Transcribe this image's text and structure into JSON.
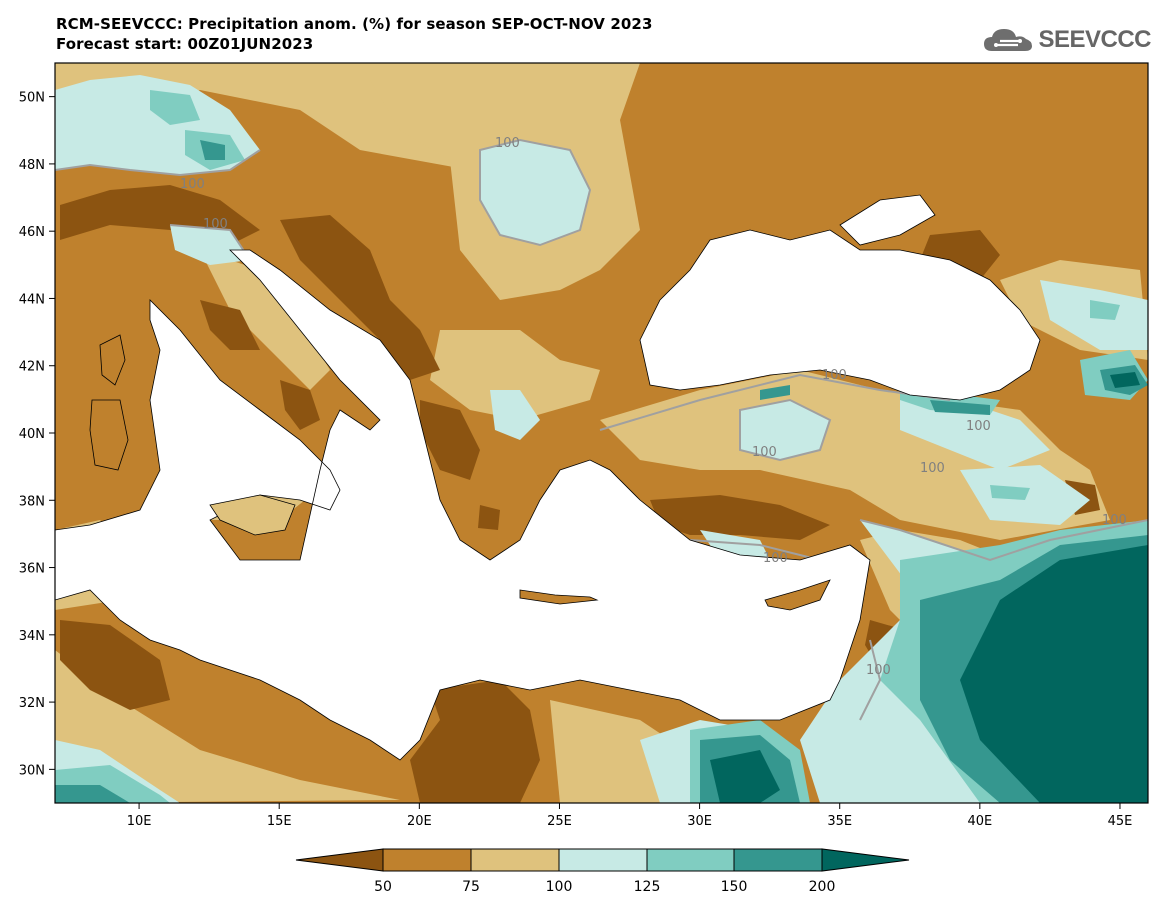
{
  "header": {
    "title_line1": "RCM-SEEVCCC: Precipitation anom. (%) for season SEP-OCT-NOV 2023",
    "title_line2": "Forecast start: 00Z01JUN2023"
  },
  "logo": {
    "text": "SEEVCCC",
    "icon": "cloud-icon"
  },
  "map": {
    "projection": "lat-lon",
    "lon_range": [
      7,
      46
    ],
    "lat_range": [
      29,
      51
    ],
    "lon_ticks": [
      "10E",
      "15E",
      "20E",
      "25E",
      "30E",
      "35E",
      "40E",
      "45E"
    ],
    "lat_ticks": [
      "30N",
      "32N",
      "34N",
      "36N",
      "38N",
      "40N",
      "42N",
      "44N",
      "46N",
      "48N",
      "50N"
    ],
    "contour_labels": [
      "100",
      "100",
      "100",
      "100",
      "100",
      "100",
      "100",
      "100",
      "100",
      "100",
      "100"
    ],
    "variable": "Precipitation anomaly (%)"
  },
  "colorbar": {
    "levels": [
      "50",
      "75",
      "100",
      "125",
      "150",
      "200"
    ],
    "colors": {
      "below_50": "#8c5411",
      "50_75": "#bf812d",
      "75_100": "#dfc27d",
      "100_125": "#c7eae5",
      "125_150": "#80cdc1",
      "150_200": "#35978f",
      "above_200": "#01665e"
    }
  }
}
